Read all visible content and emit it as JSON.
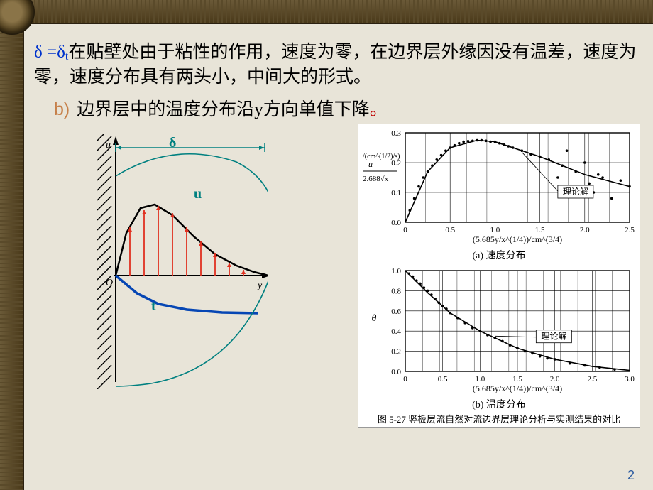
{
  "text": {
    "line1_a": "δ =δ",
    "line1_sub": "t",
    "line1_b": "在贴壁处由于粘性的作用，速度为零，在边界层外缘因没有温差，速度为零，速度分布具有两头小，中间大的形式。",
    "bullet": "b)",
    "line2_a": "边界层中的温度分布沿y方向单值下降",
    "line2_b": "。"
  },
  "labels": {
    "delta": "δ",
    "u": "u",
    "t": "t",
    "y": "y",
    "O": "O",
    "uaxis": "u"
  },
  "chartA": {
    "title": "(a) 速度分布",
    "ylabel_top": "u",
    "ylabel_bot": "2.688√x",
    "ylabel_unit": "/(cm^(1/2)/s)",
    "xlabel": "(5.685y/x^(1/4))/cm^(3/4)",
    "annotation": "理论解",
    "xlim": [
      0,
      2.5
    ],
    "ylim": [
      0,
      0.3
    ],
    "xticks": [
      0,
      0.5,
      1.0,
      1.5,
      2.0,
      2.5
    ],
    "yticks": [
      0,
      0.1,
      0.2,
      0.3
    ],
    "curve": [
      [
        0,
        0
      ],
      [
        0.25,
        0.17
      ],
      [
        0.5,
        0.25
      ],
      [
        0.8,
        0.275
      ],
      [
        1.0,
        0.27
      ],
      [
        1.5,
        0.22
      ],
      [
        2.0,
        0.16
      ],
      [
        2.5,
        0.12
      ]
    ],
    "scatter": [
      [
        0.05,
        0.04
      ],
      [
        0.1,
        0.08
      ],
      [
        0.15,
        0.12
      ],
      [
        0.2,
        0.15
      ],
      [
        0.25,
        0.17
      ],
      [
        0.3,
        0.19
      ],
      [
        0.35,
        0.21
      ],
      [
        0.4,
        0.225
      ],
      [
        0.45,
        0.24
      ],
      [
        0.5,
        0.25
      ],
      [
        0.55,
        0.258
      ],
      [
        0.6,
        0.265
      ],
      [
        0.65,
        0.27
      ],
      [
        0.7,
        0.272
      ],
      [
        0.75,
        0.273
      ],
      [
        0.8,
        0.275
      ],
      [
        0.85,
        0.275
      ],
      [
        0.9,
        0.273
      ],
      [
        0.95,
        0.27
      ],
      [
        1.0,
        0.27
      ],
      [
        1.05,
        0.265
      ],
      [
        1.1,
        0.26
      ],
      [
        1.15,
        0.255
      ],
      [
        1.2,
        0.25
      ],
      [
        1.3,
        0.24
      ],
      [
        1.4,
        0.228
      ],
      [
        1.5,
        0.22
      ],
      [
        1.6,
        0.21
      ],
      [
        1.7,
        0.15
      ],
      [
        1.75,
        0.19
      ],
      [
        1.8,
        0.24
      ],
      [
        1.85,
        0.12
      ],
      [
        1.9,
        0.17
      ],
      [
        2.0,
        0.2
      ],
      [
        2.05,
        0.13
      ],
      [
        2.1,
        0.1
      ],
      [
        2.15,
        0.16
      ],
      [
        2.2,
        0.15
      ],
      [
        2.3,
        0.08
      ],
      [
        2.4,
        0.14
      ],
      [
        2.5,
        0.12
      ]
    ]
  },
  "chartB": {
    "title": "(b) 温度分布",
    "caption": "图 5-27  竖板层流自然对流边界层理论分析与实测结果的对比",
    "ylabel": "θ",
    "xlabel": "(5.685y/x^(1/4))/cm^(3/4)",
    "annotation": "理论解",
    "xlim": [
      0,
      3.0
    ],
    "ylim": [
      0,
      1.0
    ],
    "xticks": [
      0,
      0.5,
      1.0,
      1.5,
      2.0,
      2.5,
      3.0
    ],
    "yticks": [
      0,
      0.2,
      0.4,
      0.6,
      0.8,
      1.0
    ],
    "curve": [
      [
        0,
        1.0
      ],
      [
        0.3,
        0.78
      ],
      [
        0.6,
        0.58
      ],
      [
        1.0,
        0.4
      ],
      [
        1.5,
        0.23
      ],
      [
        2.0,
        0.12
      ],
      [
        2.5,
        0.05
      ],
      [
        3.0,
        0.01
      ]
    ],
    "scatter": [
      [
        0.05,
        0.97
      ],
      [
        0.1,
        0.94
      ],
      [
        0.15,
        0.9
      ],
      [
        0.2,
        0.87
      ],
      [
        0.25,
        0.83
      ],
      [
        0.3,
        0.8
      ],
      [
        0.35,
        0.76
      ],
      [
        0.4,
        0.72
      ],
      [
        0.45,
        0.68
      ],
      [
        0.5,
        0.65
      ],
      [
        0.55,
        0.62
      ],
      [
        0.6,
        0.58
      ],
      [
        0.7,
        0.53
      ],
      [
        0.8,
        0.48
      ],
      [
        0.9,
        0.43
      ],
      [
        1.0,
        0.4
      ],
      [
        1.1,
        0.36
      ],
      [
        1.2,
        0.33
      ],
      [
        1.3,
        0.3
      ],
      [
        1.4,
        0.26
      ],
      [
        1.5,
        0.23
      ],
      [
        1.6,
        0.2
      ],
      [
        1.7,
        0.18
      ],
      [
        1.8,
        0.15
      ],
      [
        1.9,
        0.13
      ],
      [
        2.0,
        0.12
      ],
      [
        2.2,
        0.08
      ],
      [
        2.4,
        0.06
      ],
      [
        2.6,
        0.04
      ],
      [
        2.8,
        0.02
      ]
    ]
  },
  "leftFig": {
    "u_curve": [
      [
        0,
        0
      ],
      [
        15,
        60
      ],
      [
        35,
        95
      ],
      [
        55,
        100
      ],
      [
        80,
        85
      ],
      [
        110,
        55
      ],
      [
        140,
        30
      ],
      [
        170,
        14
      ],
      [
        195,
        5
      ],
      [
        215,
        0
      ]
    ],
    "arrows_x": [
      20,
      40,
      60,
      80,
      100,
      120,
      140,
      160,
      180
    ],
    "arrows_h": [
      68,
      92,
      98,
      88,
      68,
      48,
      32,
      18,
      8
    ],
    "t_curve": [
      [
        0,
        0
      ],
      [
        30,
        -25
      ],
      [
        60,
        -40
      ],
      [
        100,
        -48
      ],
      [
        150,
        -52
      ],
      [
        200,
        -53
      ]
    ],
    "bl_curve": [
      [
        0,
        0
      ],
      [
        30,
        60
      ],
      [
        70,
        100
      ],
      [
        120,
        120
      ],
      [
        180,
        90
      ],
      [
        230,
        0
      ],
      [
        180,
        -160
      ],
      [
        70,
        -200
      ],
      [
        0,
        -210
      ]
    ]
  },
  "colors": {
    "teal": "#008080",
    "blue": "#0646b4",
    "red": "#e03020",
    "black": "#000"
  },
  "pagenum": "2"
}
